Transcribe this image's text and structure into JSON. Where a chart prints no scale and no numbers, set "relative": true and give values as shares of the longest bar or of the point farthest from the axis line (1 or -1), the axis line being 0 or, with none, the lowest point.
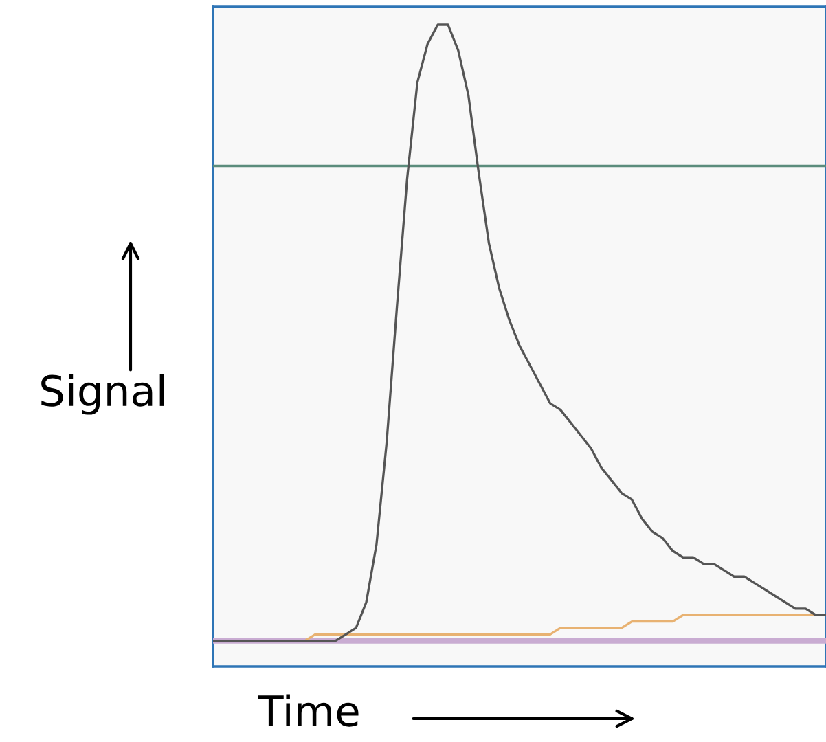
{
  "chart_data": {
    "type": "line",
    "relative": true,
    "xlabel": "Time",
    "ylabel": "Signal",
    "categories": [
      null,
      null,
      null,
      null,
      null,
      null,
      null,
      null,
      null,
      null,
      null,
      null,
      null,
      null,
      null,
      null,
      null,
      null,
      null,
      null,
      null,
      null,
      null,
      null,
      null,
      null,
      null,
      null,
      null,
      null,
      null,
      null,
      null,
      null,
      null,
      null,
      null,
      null,
      null,
      null,
      null,
      null,
      null,
      null,
      null,
      null,
      null,
      null,
      null,
      null,
      null,
      null,
      null,
      null,
      null,
      null,
      null,
      null,
      null,
      null,
      null
    ],
    "series": [
      {
        "color": "#c9acd2",
        "values": [
          0.04,
          0.04,
          0.04,
          0.04,
          0.04,
          0.04,
          0.04,
          0.04,
          0.04,
          0.04,
          0.04,
          0.04,
          0.04,
          0.04,
          0.04,
          0.04,
          0.04,
          0.04,
          0.04,
          0.04,
          0.04,
          0.04,
          0.04,
          0.04,
          0.04,
          0.04,
          0.04,
          0.04,
          0.04,
          0.04,
          0.04,
          0.04,
          0.04,
          0.04,
          0.04,
          0.04,
          0.04,
          0.04,
          0.04,
          0.04,
          0.04,
          0.04,
          0.04,
          0.04,
          0.04,
          0.04,
          0.04,
          0.04,
          0.04,
          0.04,
          0.04,
          0.04,
          0.04,
          0.04,
          0.04,
          0.04,
          0.04,
          0.04,
          0.04,
          0.04,
          0.04
        ]
      },
      {
        "color": "#e8b272",
        "values": [
          null,
          null,
          null,
          null,
          null,
          null,
          null,
          null,
          null,
          0.04,
          0.05,
          0.05,
          0.05,
          0.05,
          0.05,
          0.05,
          0.05,
          0.05,
          0.05,
          0.05,
          0.05,
          0.05,
          0.05,
          0.05,
          0.05,
          0.05,
          0.05,
          0.05,
          0.05,
          0.05,
          0.05,
          0.05,
          0.05,
          0.05,
          0.06,
          0.06,
          0.06,
          0.06,
          0.06,
          0.06,
          0.06,
          0.07,
          0.07,
          0.07,
          0.07,
          0.07,
          0.08,
          0.08,
          0.08,
          0.08,
          0.08,
          0.08,
          0.08,
          0.08,
          0.08,
          0.08,
          0.08,
          0.08,
          0.08,
          0.08,
          null
        ]
      },
      {
        "color": "#5b8c7c",
        "values": [
          0.78,
          0.78,
          0.78,
          0.78,
          0.78,
          0.78,
          0.78,
          0.78,
          0.78,
          0.78,
          0.78,
          0.78,
          0.78,
          0.78,
          0.78,
          0.78,
          0.78,
          0.78,
          0.78,
          0.78,
          0.78,
          0.78,
          0.78,
          0.78,
          0.78,
          0.78,
          0.78,
          0.78,
          0.78,
          0.78,
          0.78,
          0.78,
          0.78,
          0.78,
          0.78,
          0.78,
          0.78,
          0.78,
          0.78,
          0.78,
          0.78,
          0.78,
          0.78,
          0.78,
          0.78,
          0.78,
          0.78,
          0.78,
          0.78,
          0.78,
          0.78,
          0.78,
          0.78,
          0.78,
          0.78,
          0.78,
          0.78,
          0.78,
          0.78,
          0.78,
          0.78
        ]
      },
      {
        "color": "#555555",
        "values": [
          0.04,
          0.04,
          0.04,
          0.04,
          0.04,
          0.04,
          0.04,
          0.04,
          0.04,
          0.04,
          0.04,
          0.04,
          0.04,
          0.05,
          0.06,
          0.1,
          0.19,
          0.35,
          0.56,
          0.76,
          0.91,
          0.97,
          1,
          1,
          0.96,
          0.89,
          0.77,
          0.66,
          0.59,
          0.54,
          0.5,
          0.47,
          0.44,
          0.41,
          0.4,
          0.38,
          0.36,
          0.34,
          0.31,
          0.29,
          0.27,
          0.26,
          0.23,
          0.21,
          0.2,
          0.18,
          0.17,
          0.17,
          0.16,
          0.16,
          0.15,
          0.14,
          0.14,
          0.13,
          0.12,
          0.11,
          0.1,
          0.09,
          0.09,
          0.08,
          0.08
        ]
      }
    ]
  }
}
